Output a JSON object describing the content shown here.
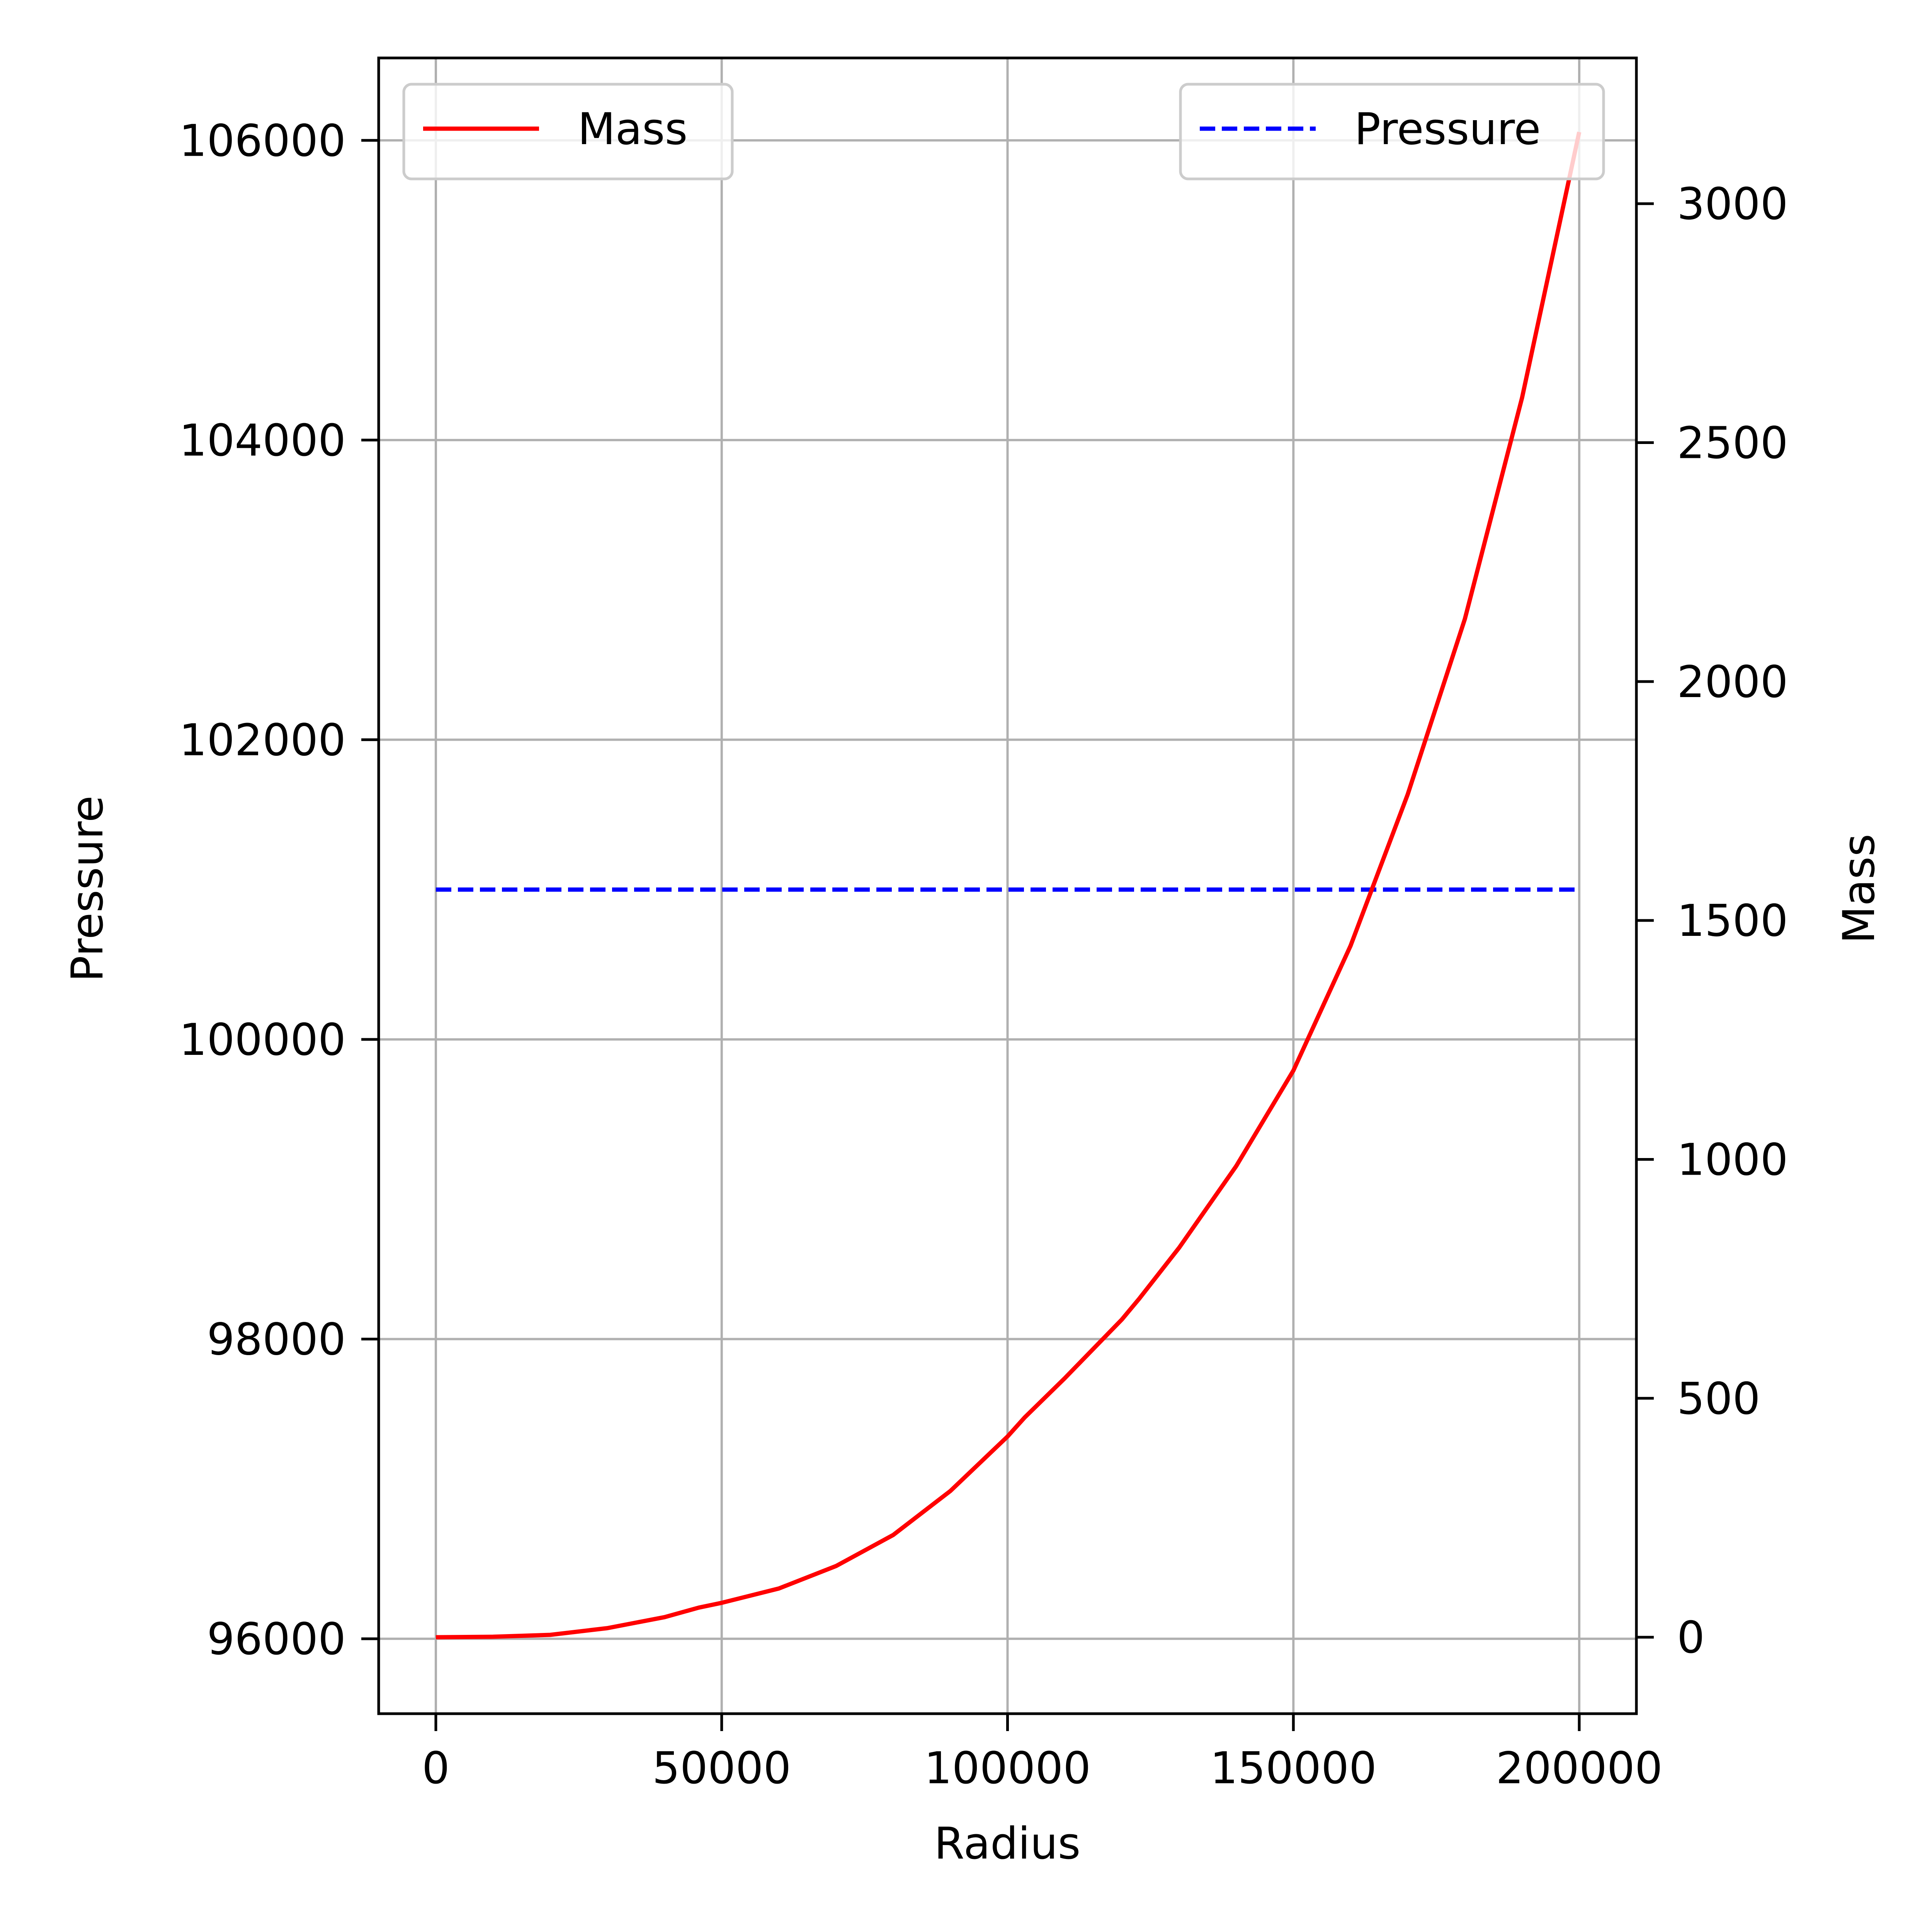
{
  "chart_data": {
    "type": "line",
    "xlabel": "Radius",
    "ylabel_left": "Pressure",
    "ylabel_right": "Mass",
    "xlim": [
      -10000,
      210000
    ],
    "ylim_left": [
      95500,
      106550
    ],
    "ylim_right": [
      -160,
      3305
    ],
    "x_ticks": [
      0,
      50000,
      100000,
      150000,
      200000
    ],
    "x_tick_labels": [
      "0",
      "50000",
      "100000",
      "150000",
      "200000"
    ],
    "y_left_ticks": [
      96000,
      98000,
      100000,
      102000,
      104000,
      106000
    ],
    "y_left_tick_labels": [
      "96000",
      "98000",
      "100000",
      "102000",
      "104000",
      "106000"
    ],
    "y_right_ticks": [
      0,
      500,
      1000,
      1500,
      2000,
      2500,
      3000
    ],
    "y_right_tick_labels": [
      "0",
      "500",
      "1000",
      "1500",
      "2000",
      "2500",
      "3000"
    ],
    "grid": true,
    "series": [
      {
        "name": "Pressure",
        "axis": "left",
        "color": "#0000ff",
        "style": "dashed",
        "legend_position": "top-right",
        "x": [
          0,
          200000
        ],
        "y": [
          101000,
          101000
        ]
      },
      {
        "name": "Mass",
        "axis": "right",
        "color": "#ff0000",
        "style": "solid",
        "legend_position": "top-left",
        "x": [
          0,
          10000,
          20000,
          30000,
          40000,
          46000,
          50000,
          60000,
          70000,
          80000,
          90000,
          100000,
          103000,
          110000,
          120000,
          123000,
          130000,
          140000,
          150000,
          160000,
          170000,
          180000,
          190000,
          200000
        ],
        "y": [
          0,
          1,
          5,
          19,
          42,
          62,
          72,
          102,
          149,
          214,
          306,
          420,
          460,
          542,
          665,
          708,
          815,
          986,
          1186,
          1447,
          1764,
          2131,
          2594,
          3150
        ]
      }
    ]
  }
}
